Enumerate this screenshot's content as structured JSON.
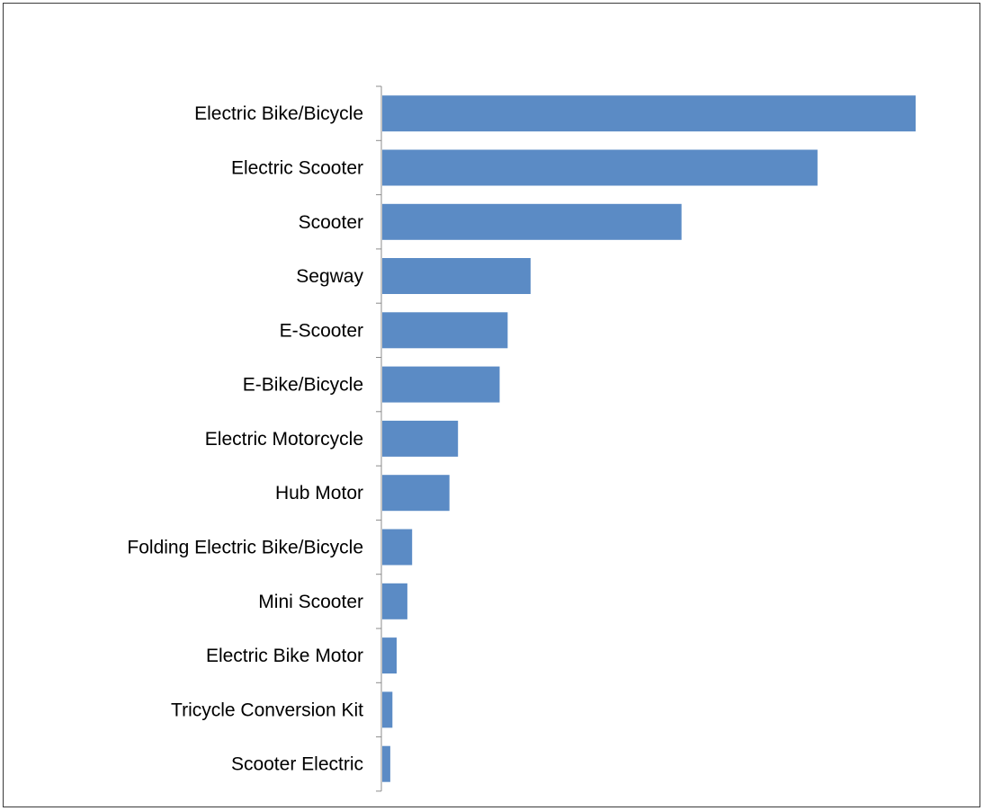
{
  "chart_data": {
    "type": "bar",
    "orientation": "horizontal",
    "title": "",
    "xlabel": "",
    "ylabel": "",
    "categories": [
      "Electric Bike/Bicycle",
      "Electric Scooter",
      "Scooter",
      "Segway",
      "E-Scooter",
      "E-Bike/Bicycle",
      "Electric Motorcycle",
      "Hub Motor",
      "Folding Electric Bike/Bicycle",
      "Mini Scooter",
      "Electric Bike Motor",
      "Tricycle Conversion Kit",
      "Scooter Electric"
    ],
    "values": [
      100,
      81.6,
      56.1,
      27.8,
      23.5,
      22.0,
      14.2,
      12.6,
      5.6,
      4.7,
      2.7,
      1.9,
      1.5
    ],
    "xlim": [
      0,
      100
    ],
    "grid": false,
    "legend": "none",
    "bar_color": "#5B8BC5",
    "axis_color": "#8C8C8C"
  }
}
